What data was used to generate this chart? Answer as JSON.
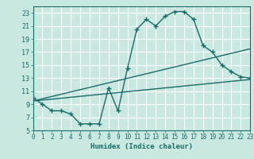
{
  "title": "",
  "xlabel": "Humidex (Indice chaleur)",
  "bg_color": "#c8e8e0",
  "grid_color": "#ffffff",
  "line_color": "#1a6b6b",
  "xlim": [
    0,
    23
  ],
  "ylim": [
    5,
    24
  ],
  "yticks": [
    5,
    7,
    9,
    11,
    13,
    15,
    17,
    19,
    21,
    23
  ],
  "xticks": [
    0,
    1,
    2,
    3,
    4,
    5,
    6,
    7,
    8,
    9,
    10,
    11,
    12,
    13,
    14,
    15,
    16,
    17,
    18,
    19,
    20,
    21,
    22,
    23
  ],
  "line1_x": [
    0,
    1,
    2,
    3,
    4,
    5,
    6,
    7,
    8,
    9,
    10,
    11,
    12,
    13,
    14,
    15,
    16,
    17,
    18,
    19,
    20,
    21,
    22,
    23
  ],
  "line1_y": [
    10,
    9,
    8,
    8,
    7.5,
    6,
    6,
    6,
    11.5,
    8,
    14.5,
    20.5,
    22,
    21,
    22.5,
    23.2,
    23.2,
    22,
    18,
    17,
    15,
    14,
    13.2,
    13
  ],
  "line2_x": [
    0,
    23
  ],
  "line2_y": [
    9.5,
    12.8
  ],
  "line3_x": [
    0,
    23
  ],
  "line3_y": [
    9.5,
    17.5
  ],
  "markersize": 2.5,
  "linewidth": 1.0
}
